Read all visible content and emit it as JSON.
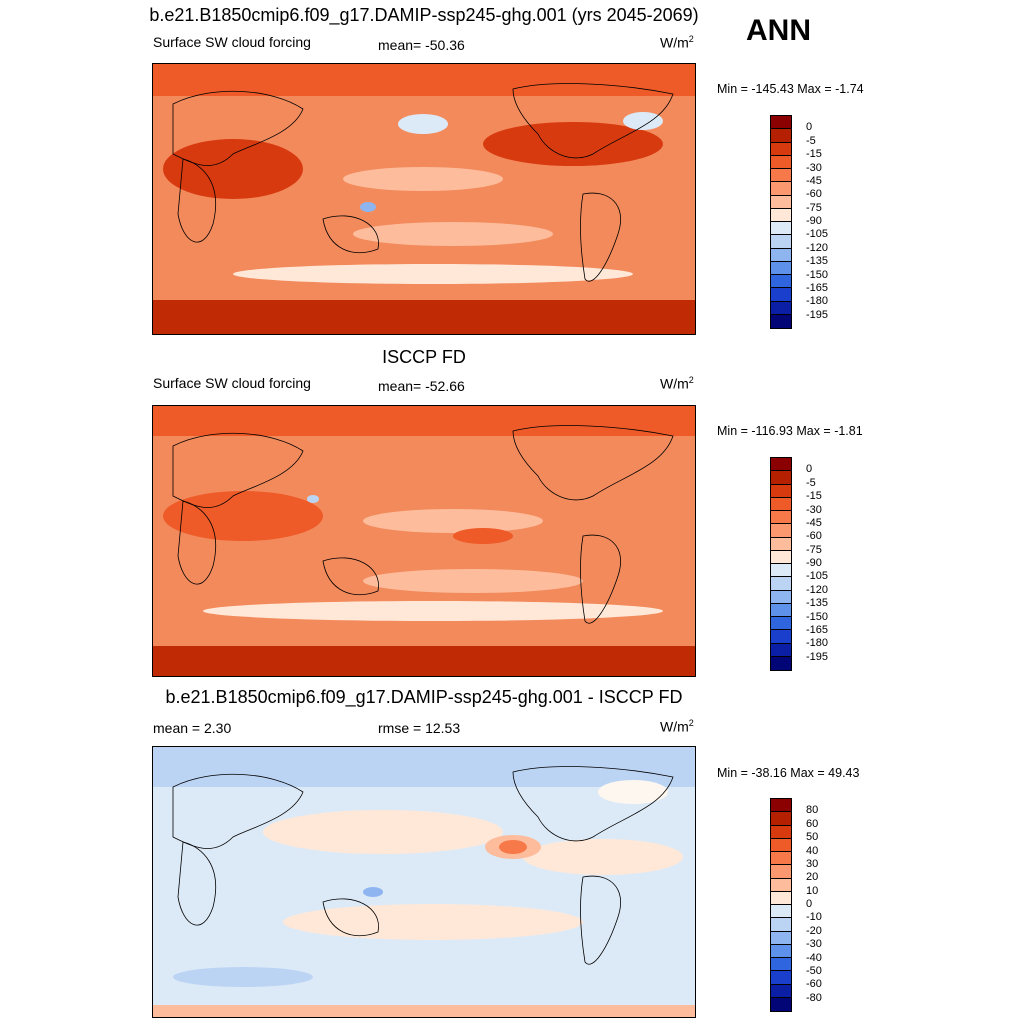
{
  "season": "ANN",
  "units": "W/m",
  "units_sup": "2",
  "panels": [
    {
      "title": "b.e21.B1850cmip6.f09_g17.DAMIP-ssp245-ghg.001 (yrs 2045-2069)",
      "left_label": "Surface SW cloud forcing",
      "mid_label": "mean= -50.36",
      "minmax": "Min = -145.43 Max =  -1.74",
      "colorbar": {
        "colors": [
          "#8b0000",
          "#b52000",
          "#d83a10",
          "#ee5a28",
          "#f7794a",
          "#fb9870",
          "#fdbd9c",
          "#ffe8d8",
          "#dceaf8",
          "#bcd4f4",
          "#8fb5f0",
          "#5e91ea",
          "#2f66df",
          "#1a3fcc",
          "#0b1fa6",
          "#020575"
        ],
        "labels": [
          "0",
          "-5",
          "-15",
          "-30",
          "-45",
          "-60",
          "-75",
          "-90",
          "-105",
          "-120",
          "-135",
          "-150",
          "-165",
          "-180",
          "-195"
        ]
      }
    },
    {
      "title": "ISCCP FD",
      "left_label": "Surface SW cloud forcing",
      "mid_label": "mean= -52.66",
      "minmax": "Min = -116.93 Max =  -1.81",
      "colorbar": {
        "colors": [
          "#8b0000",
          "#b52000",
          "#d83a10",
          "#ee5a28",
          "#f7794a",
          "#fb9870",
          "#fdbd9c",
          "#ffe8d8",
          "#dceaf8",
          "#bcd4f4",
          "#8fb5f0",
          "#5e91ea",
          "#2f66df",
          "#1a3fcc",
          "#0b1fa6",
          "#020575"
        ],
        "labels": [
          "0",
          "-5",
          "-15",
          "-30",
          "-45",
          "-60",
          "-75",
          "-90",
          "-105",
          "-120",
          "-135",
          "-150",
          "-165",
          "-180",
          "-195"
        ]
      }
    },
    {
      "title": "b.e21.B1850cmip6.f09_g17.DAMIP-ssp245-ghg.001 - ISCCP FD",
      "left_label": "mean =   2.30",
      "mid_label": "rmse =  12.53",
      "minmax": "Min = -38.16 Max =  49.43",
      "colorbar": {
        "colors": [
          "#8b0000",
          "#b52000",
          "#d83a10",
          "#ee5a28",
          "#f7794a",
          "#fb9870",
          "#fdbd9c",
          "#ffe8d8",
          "#dceaf8",
          "#bcd4f4",
          "#8fb5f0",
          "#5e91ea",
          "#2f66df",
          "#1a3fcc",
          "#0b1fa6",
          "#020575"
        ],
        "labels": [
          "80",
          "60",
          "50",
          "40",
          "30",
          "20",
          "10",
          "0",
          "-10",
          "-20",
          "-30",
          "-40",
          "-50",
          "-60",
          "-80"
        ]
      }
    }
  ],
  "chart_data": [
    {
      "type": "heatmap",
      "title": "b.e21.B1850cmip6.f09_g17.DAMIP-ssp245-ghg.001 (yrs 2045-2069)",
      "variable": "Surface SW cloud forcing",
      "units": "W/m2",
      "mean": -50.36,
      "min": -145.43,
      "max": -1.74,
      "contour_levels": [
        0,
        -5,
        -15,
        -30,
        -45,
        -60,
        -75,
        -90,
        -105,
        -120,
        -135,
        -150,
        -165,
        -180,
        -195
      ]
    },
    {
      "type": "heatmap",
      "title": "ISCCP FD",
      "variable": "Surface SW cloud forcing",
      "units": "W/m2",
      "mean": -52.66,
      "min": -116.93,
      "max": -1.81,
      "contour_levels": [
        0,
        -5,
        -15,
        -30,
        -45,
        -60,
        -75,
        -90,
        -105,
        -120,
        -135,
        -150,
        -165,
        -180,
        -195
      ]
    },
    {
      "type": "heatmap",
      "title": "b.e21.B1850cmip6.f09_g17.DAMIP-ssp245-ghg.001 - ISCCP FD",
      "units": "W/m2",
      "mean": 2.3,
      "rmse": 12.53,
      "min": -38.16,
      "max": 49.43,
      "contour_levels": [
        80,
        60,
        50,
        40,
        30,
        20,
        10,
        0,
        -10,
        -20,
        -30,
        -40,
        -50,
        -60,
        -80
      ]
    }
  ]
}
